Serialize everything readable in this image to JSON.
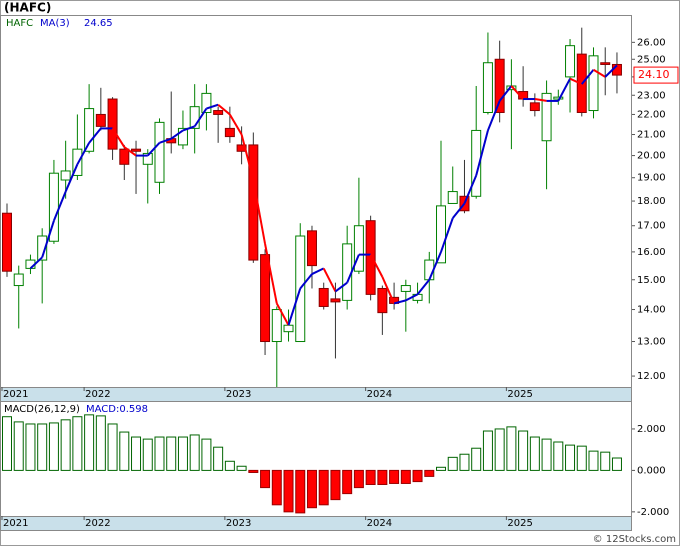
{
  "chart_data": [
    {
      "type": "candlestick",
      "title": "(HAFC)",
      "symbol": "HAFC",
      "categories": [
        "2021",
        null,
        null,
        null,
        null,
        null,
        null,
        "2022",
        null,
        null,
        null,
        null,
        null,
        null,
        null,
        null,
        null,
        null,
        null,
        "2023",
        null,
        null,
        null,
        null,
        null,
        null,
        null,
        null,
        null,
        null,
        null,
        "2024",
        null,
        null,
        null,
        null,
        null,
        null,
        null,
        null,
        null,
        null,
        null,
        "2025",
        null,
        null,
        null,
        null,
        null,
        null,
        null,
        null,
        null
      ],
      "open": [
        17.5,
        14.8,
        15.4,
        15.7,
        16.4,
        18.9,
        19.1,
        20.2,
        22.0,
        22.8,
        20.3,
        20.3,
        19.6,
        18.8,
        20.8,
        20.5,
        21.3,
        22.1,
        22.2,
        21.3,
        20.5,
        20.5,
        15.9,
        13.0,
        13.3,
        13.0,
        16.8,
        14.7,
        14.35,
        14.3,
        15.3,
        17.2,
        14.7,
        14.4,
        14.6,
        14.3,
        15.0,
        15.6,
        17.9,
        18.2,
        18.2,
        22.1,
        25.0,
        23.3,
        23.2,
        22.6,
        20.7,
        22.8,
        24.0,
        25.3,
        22.2,
        24.8,
        24.7
      ],
      "high": [
        17.9,
        15.5,
        15.9,
        16.9,
        19.8,
        20.7,
        22.0,
        23.6,
        23.4,
        22.9,
        20.5,
        20.7,
        20.3,
        21.8,
        23.2,
        22.2,
        23.6,
        23.6,
        22.4,
        22.4,
        21.4,
        21.1,
        16.1,
        14.1,
        14.0,
        17.1,
        17.0,
        14.9,
        14.9,
        17.0,
        19.0,
        17.4,
        14.8,
        14.9,
        15.0,
        14.9,
        16.0,
        20.7,
        19.5,
        19.8,
        23.5,
        26.6,
        26.1,
        25.0,
        24.6,
        23.1,
        23.8,
        23.3,
        26.2,
        26.9,
        25.7,
        25.7,
        25.4
      ],
      "low": [
        15.1,
        13.4,
        15.2,
        14.2,
        16.3,
        18.1,
        18.9,
        20.1,
        21.2,
        19.8,
        18.9,
        18.3,
        17.9,
        18.3,
        20.1,
        20.3,
        20.1,
        21.2,
        20.6,
        20.6,
        19.6,
        15.6,
        12.6,
        11.7,
        13.0,
        13.0,
        14.7,
        14.0,
        12.5,
        14.0,
        15.2,
        14.3,
        13.2,
        14.0,
        13.3,
        14.2,
        14.2,
        15.6,
        17.9,
        17.5,
        18.1,
        22.0,
        21.6,
        20.3,
        22.4,
        21.9,
        18.5,
        22.5,
        22.1,
        21.9,
        21.8,
        23.0,
        23.1
      ],
      "close": [
        15.3,
        15.2,
        15.7,
        16.6,
        19.2,
        19.3,
        20.3,
        22.3,
        21.4,
        20.3,
        19.6,
        20.2,
        20.1,
        21.6,
        20.6,
        21.3,
        22.4,
        23.1,
        22.0,
        20.9,
        20.2,
        15.7,
        13.0,
        14.0,
        13.5,
        16.6,
        15.5,
        14.1,
        14.25,
        16.3,
        17.0,
        14.5,
        13.9,
        14.2,
        14.8,
        14.5,
        15.7,
        17.8,
        18.4,
        17.6,
        21.2,
        24.8,
        22.1,
        23.5,
        22.8,
        22.2,
        23.1,
        22.9,
        25.8,
        22.1,
        25.2,
        24.7,
        24.1
      ],
      "up_color": "#008000",
      "down_color": "#ff0000",
      "ma": {
        "name": "MA(3)",
        "last": 24.65,
        "up_color": "#0000cc",
        "down_color": "#ff0000",
        "values": [
          null,
          null,
          15.4,
          15.8,
          17.2,
          18.4,
          19.6,
          20.6,
          21.3,
          21.3,
          20.4,
          20.0,
          20.0,
          20.6,
          20.8,
          21.2,
          21.4,
          22.3,
          22.5,
          22.0,
          21.0,
          18.9,
          16.3,
          14.2,
          13.5,
          14.7,
          15.2,
          15.4,
          14.6,
          14.9,
          15.9,
          15.9,
          15.1,
          14.2,
          14.3,
          14.5,
          15.0,
          16.0,
          17.3,
          17.9,
          19.1,
          21.2,
          22.7,
          23.5,
          22.8,
          22.8,
          22.7,
          22.7,
          23.9,
          23.6,
          24.4,
          24.0,
          24.65
        ]
      },
      "last_price": {
        "value": 24.1,
        "label": "24.10"
      },
      "log_scale": true,
      "ylim": [
        11.7,
        27.7
      ],
      "yticks": [
        {
          "value": 12,
          "label": "12.00"
        },
        {
          "value": 13,
          "label": "13.00"
        },
        {
          "value": 14,
          "label": "14.00"
        },
        {
          "value": 15,
          "label": "15.00"
        },
        {
          "value": 16,
          "label": "16.00"
        },
        {
          "value": 17,
          "label": "17.00"
        },
        {
          "value": 18,
          "label": "18.00"
        },
        {
          "value": 19,
          "label": "19.00"
        },
        {
          "value": 20,
          "label": "20.00"
        },
        {
          "value": 21,
          "label": "21.00"
        },
        {
          "value": 22,
          "label": "22.00"
        },
        {
          "value": 23,
          "label": "23.00"
        },
        {
          "value": 24,
          "label": "24.00"
        },
        {
          "value": 25,
          "label": "25.00"
        },
        {
          "value": 26,
          "label": "26.00"
        }
      ]
    },
    {
      "type": "bar",
      "title": "MACD(26,12,9)",
      "legend": "MACD:0.598",
      "categories": [
        "2021",
        null,
        null,
        null,
        null,
        null,
        null,
        "2022",
        null,
        null,
        null,
        null,
        null,
        null,
        null,
        null,
        null,
        null,
        null,
        "2023",
        null,
        null,
        null,
        null,
        null,
        null,
        null,
        null,
        null,
        null,
        null,
        "2024",
        null,
        null,
        null,
        null,
        null,
        null,
        null,
        null,
        null,
        null,
        null,
        "2025",
        null,
        null,
        null,
        null,
        null,
        null,
        null,
        null,
        null
      ],
      "values": [
        2.59,
        2.34,
        2.24,
        2.24,
        2.29,
        2.44,
        2.59,
        2.68,
        2.63,
        2.24,
        1.85,
        1.61,
        1.51,
        1.61,
        1.61,
        1.61,
        1.71,
        1.51,
        1.12,
        0.44,
        0.2,
        -0.1,
        -0.83,
        -1.66,
        -2.0,
        -2.05,
        -1.8,
        -1.66,
        -1.41,
        -1.12,
        -0.83,
        -0.68,
        -0.68,
        -0.63,
        -0.63,
        -0.54,
        -0.29,
        0.15,
        0.63,
        0.78,
        1.07,
        1.9,
        2.0,
        2.1,
        1.9,
        1.61,
        1.51,
        1.37,
        1.22,
        1.17,
        0.93,
        0.88,
        0.598
      ],
      "up_color": "#006400",
      "down_color": "#ff0000",
      "ylim": [
        -2.2,
        3.3
      ],
      "yticks": [
        {
          "value": 2,
          "label": "2.000"
        },
        {
          "value": 0,
          "label": "0.000"
        },
        {
          "value": -2,
          "label": "-2.000"
        }
      ]
    }
  ],
  "copyright": "© 12Stocks.com"
}
